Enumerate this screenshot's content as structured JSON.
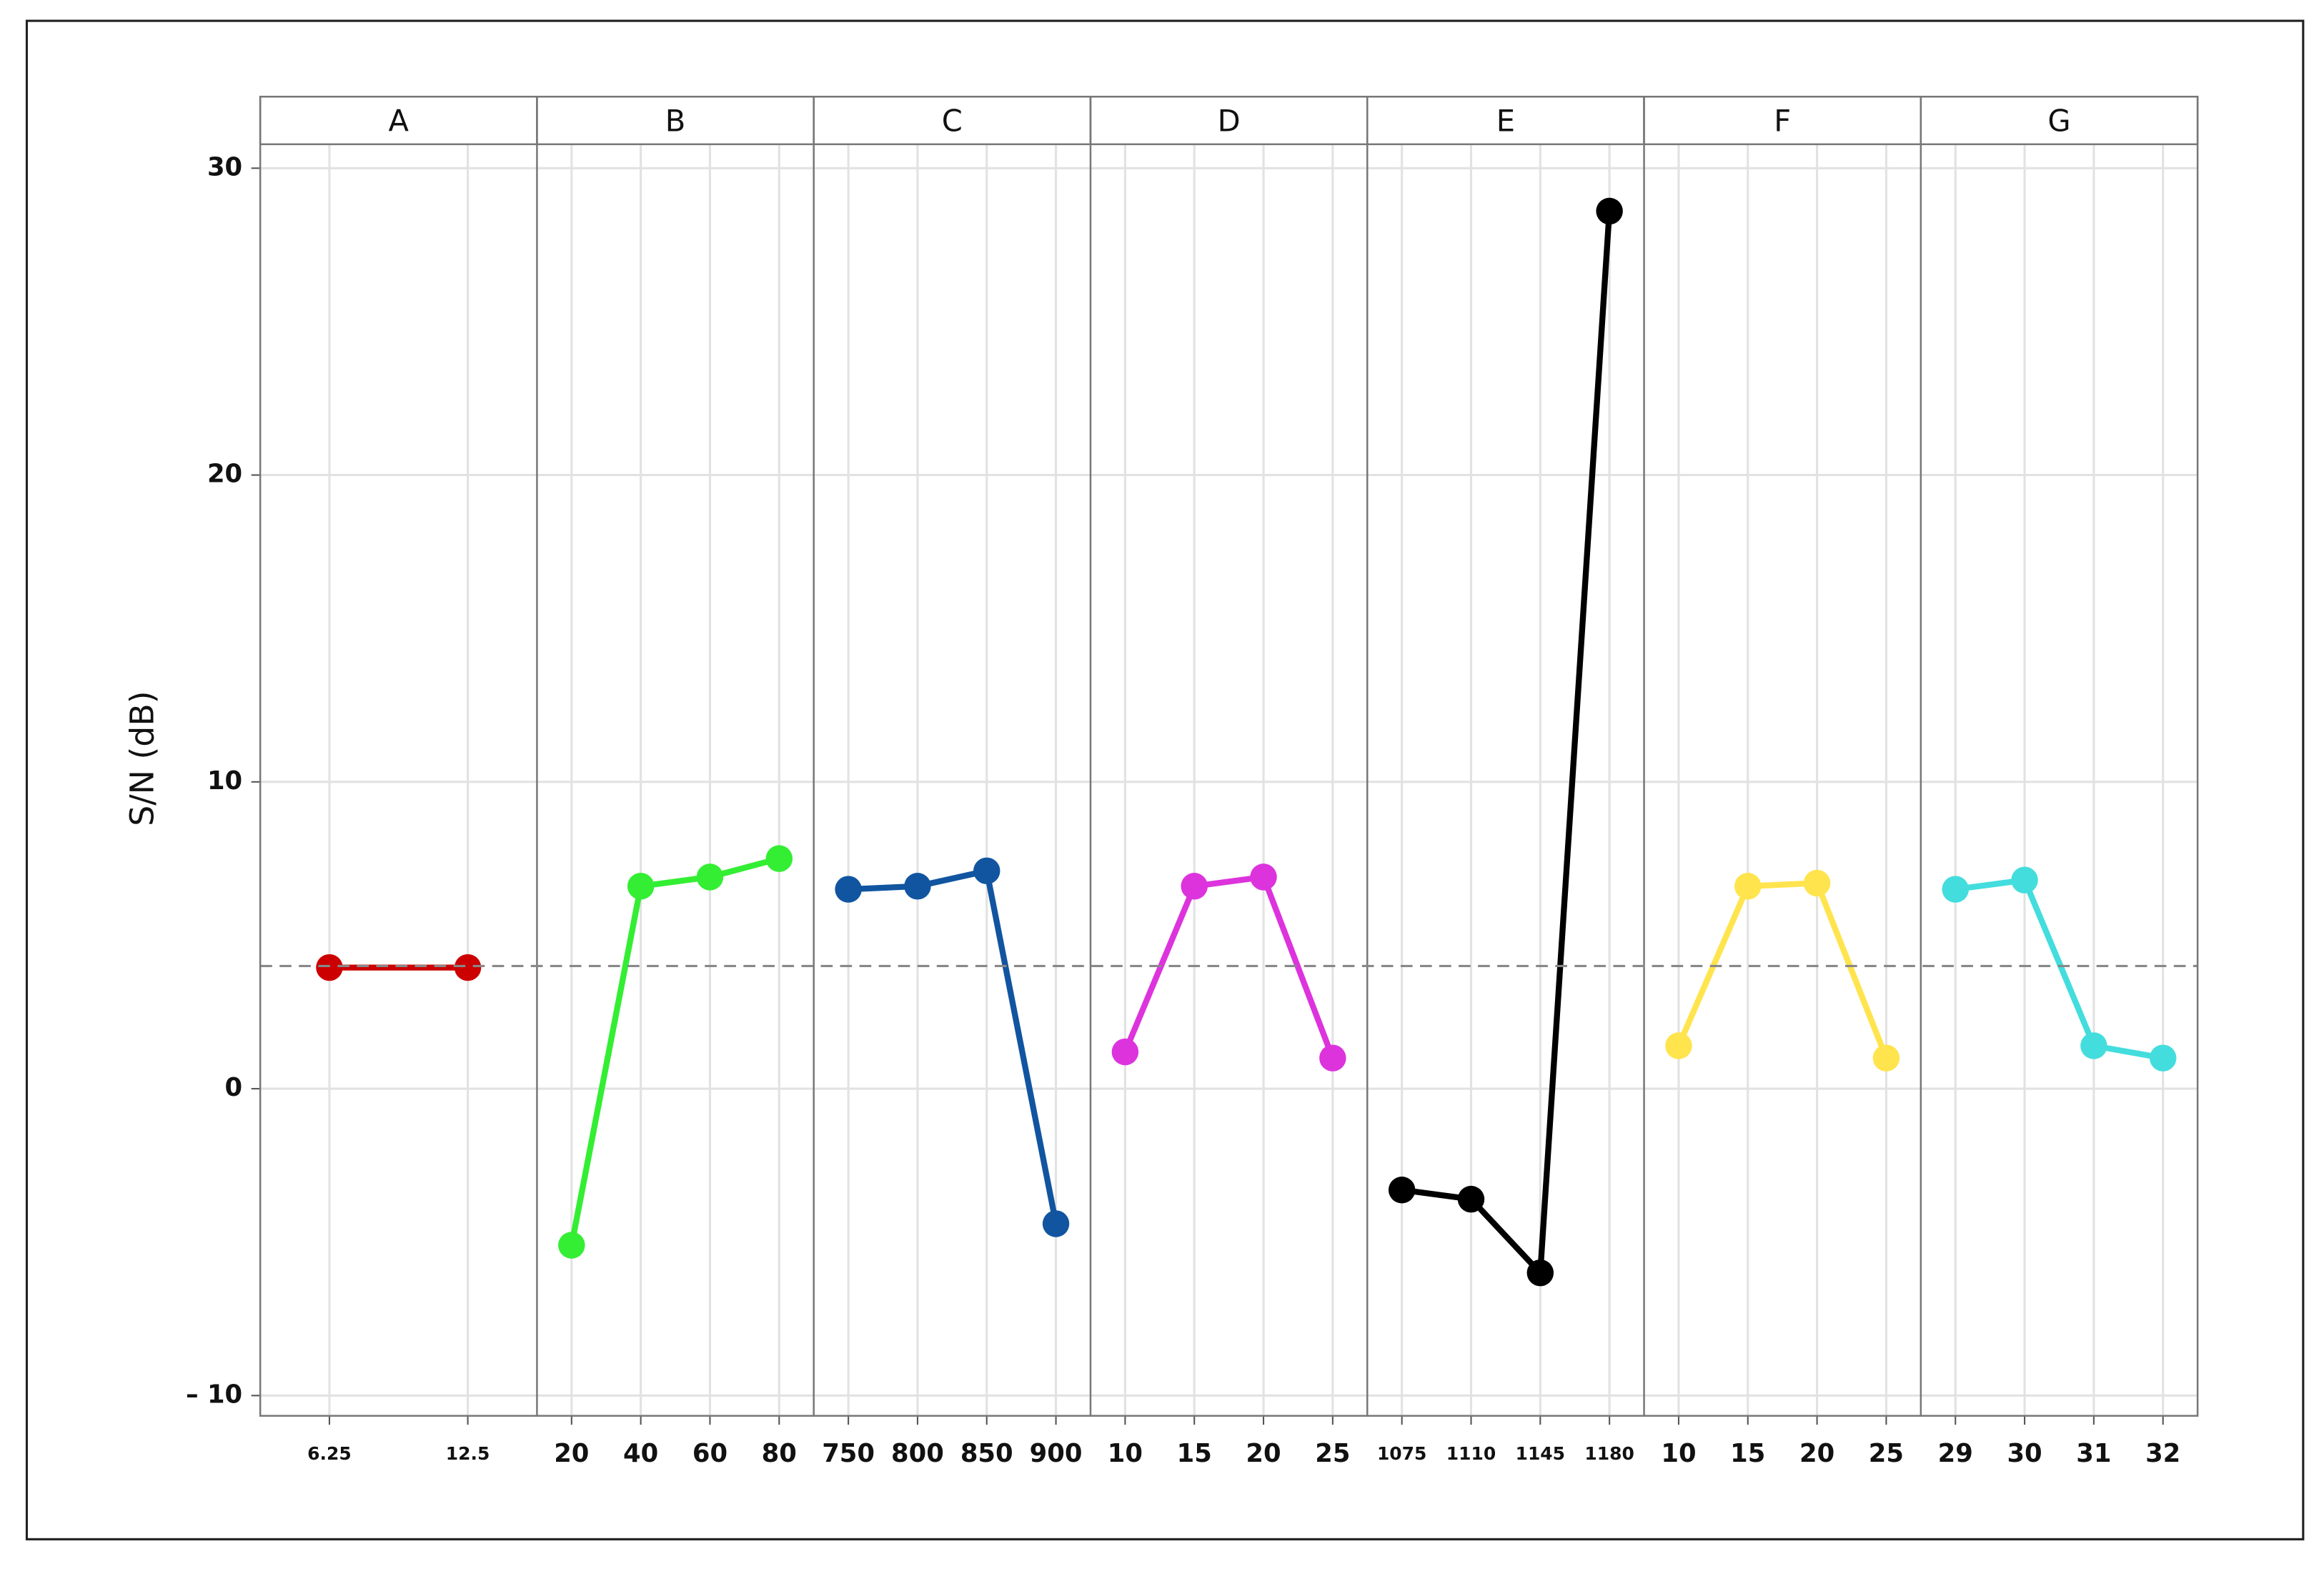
{
  "chart_data": {
    "type": "line",
    "ylabel": "S/N (dB)",
    "ylim": [
      -10.66,
      30.78
    ],
    "yticks": [
      {
        "value": -10,
        "label": "– 10"
      },
      0,
      10,
      20,
      30
    ],
    "grid": true,
    "reference_line": 4.0,
    "panels": [
      {
        "name": "A",
        "color": "#cc0000",
        "categories": [
          "6.25",
          "12.5"
        ],
        "values": [
          3.95,
          3.95
        ]
      },
      {
        "name": "B",
        "color": "#33ee33",
        "categories": [
          "20",
          "40",
          "60",
          "80"
        ],
        "values": [
          -5.1,
          6.6,
          6.9,
          7.5
        ]
      },
      {
        "name": "C",
        "color": "#1155a0",
        "categories": [
          "750",
          "800",
          "850",
          "900"
        ],
        "values": [
          6.5,
          6.6,
          7.1,
          -4.4
        ]
      },
      {
        "name": "D",
        "color": "#dd33dd",
        "categories": [
          "10",
          "15",
          "20",
          "25"
        ],
        "values": [
          1.2,
          6.6,
          6.9,
          1.0
        ]
      },
      {
        "name": "E",
        "color": "#000000",
        "categories": [
          "1075",
          "1110",
          "1145",
          "1180"
        ],
        "values": [
          -3.3,
          -3.6,
          -6.0,
          28.6
        ]
      },
      {
        "name": "F",
        "color": "#ffe44d",
        "categories": [
          "10",
          "15",
          "20",
          "25"
        ],
        "values": [
          1.4,
          6.6,
          6.7,
          1.0
        ]
      },
      {
        "name": "G",
        "color": "#44dddd",
        "categories": [
          "29",
          "30",
          "31",
          "32"
        ],
        "values": [
          6.5,
          6.8,
          1.4,
          1.0
        ]
      }
    ]
  }
}
